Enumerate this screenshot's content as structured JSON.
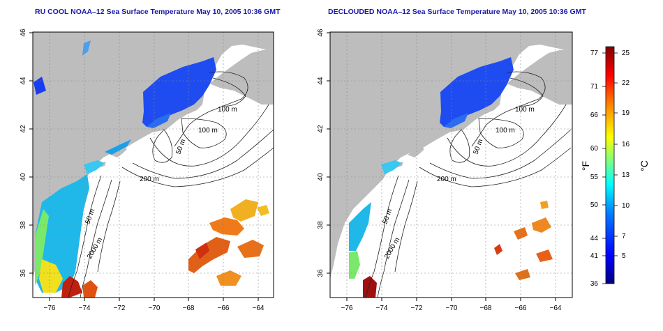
{
  "left_map": {
    "title": "RU COOL NOAA–12 Sea Surface Temperature May 10, 2005 10:36 GMT",
    "lat_ticks": [
      "46",
      "44",
      "42",
      "40",
      "38",
      "36"
    ],
    "lon_ticks": [
      "−76",
      "−74",
      "−72",
      "−70",
      "−68",
      "−66",
      "−64"
    ],
    "contour_labels": [
      "100 m",
      "100 m",
      "50 m",
      "200 m",
      "50 m",
      "2000 m"
    ]
  },
  "right_map": {
    "title": "DECLOUDED NOAA–12 Sea Surface Temperature May 10, 2005 10:36 GMT",
    "lat_ticks": [
      "46",
      "44",
      "42",
      "40",
      "38",
      "36"
    ],
    "lon_ticks": [
      "−76",
      "−74",
      "−72",
      "−70",
      "−68",
      "−66",
      "−64"
    ],
    "contour_labels": [
      "100 m",
      "100 m",
      "50 m",
      "200 m",
      "50 m",
      "2000 m"
    ]
  },
  "colorbar": {
    "fahrenheit_label": "°F",
    "celsius_label": "°C",
    "fahrenheit_ticks": [
      "77",
      "71",
      "66",
      "60",
      "55",
      "50",
      "44",
      "41",
      "36"
    ],
    "celsius_ticks": [
      "25",
      "22",
      "19",
      "16",
      "13",
      "10",
      "7",
      "5"
    ],
    "colors": [
      "#000080",
      "#0000ff",
      "#0080ff",
      "#00ffff",
      "#80ff80",
      "#ffff00",
      "#ff8000",
      "#ff0000",
      "#800000"
    ]
  },
  "colors": {
    "land": "#bdbdbd",
    "title": "#1a1aa8"
  }
}
